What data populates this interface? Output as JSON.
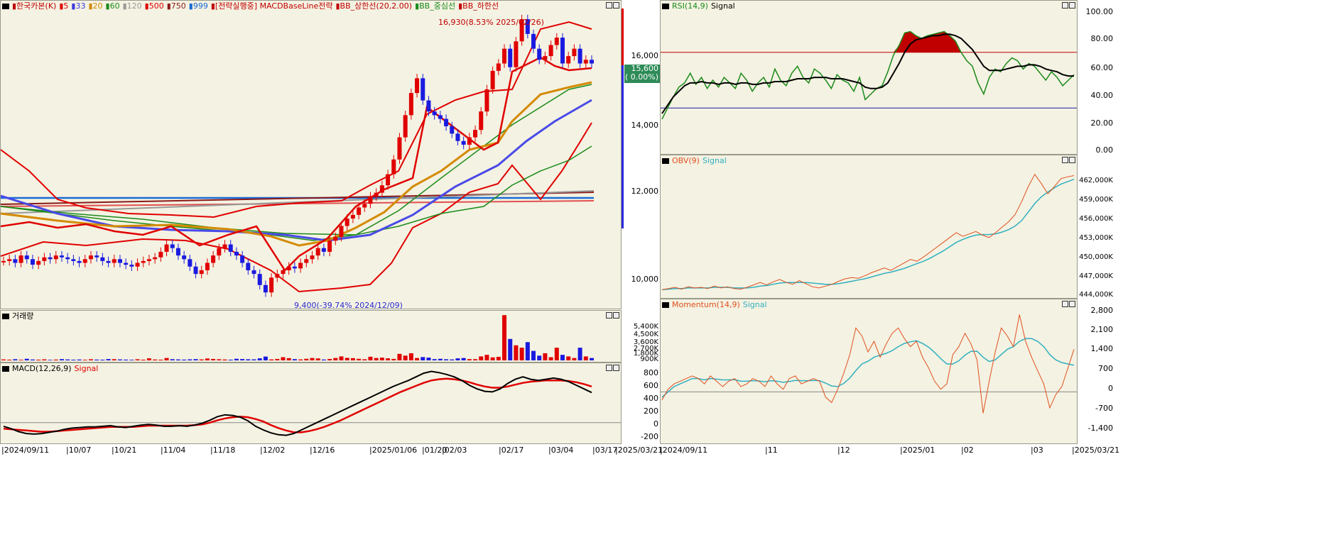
{
  "main": {
    "legend": [
      {
        "text": "한국카본(K)",
        "color": "#c00000"
      },
      {
        "text": "5",
        "color": "#e00000"
      },
      {
        "text": "33",
        "color": "#3a3ae0"
      },
      {
        "text": "20",
        "color": "#d48a00"
      },
      {
        "text": "60",
        "color": "#1a8a1a"
      },
      {
        "text": "120",
        "color": "#999999"
      },
      {
        "text": "500",
        "color": "#e00000"
      },
      {
        "text": "750",
        "color": "#8b1a1a"
      },
      {
        "text": "999",
        "color": "#1a6ad4"
      },
      {
        "text": "[전략실행중] MACDBaseLine전략",
        "color": "#c00000"
      },
      {
        "text": "BB_상한선(20,2.00)",
        "color": "#c00000"
      },
      {
        "text": "BB_중심선",
        "color": "#1a8a1a"
      },
      {
        "text": "BB_하한선",
        "color": "#c00000"
      }
    ],
    "y_ticks": [
      "16,000",
      "14,000",
      "12,000",
      "10,000"
    ],
    "price_tag": "15,600",
    "price_change": "( 0.00%)",
    "high_note": "16,930(8.53% 2025/02/26)",
    "low_note": "9,400(-39.74% 2024/12/09)"
  },
  "volume": {
    "title": "거래량",
    "y_ticks": [
      "5,400K",
      "4,500K",
      "3,600K",
      "2,700K",
      "1,800K",
      "900K",
      "0K"
    ]
  },
  "macd": {
    "title": "MACD(12,26,9)",
    "signal": "Signal",
    "y_ticks": [
      "800",
      "600",
      "400",
      "200",
      "0",
      "-200"
    ]
  },
  "x_ticks": [
    "2024/09/11",
    "10/07",
    "10/21",
    "11/04",
    "11/18",
    "12/02",
    "12/16",
    "2025/01/06",
    "01/20",
    "02/03",
    "02/17",
    "03/04",
    "03/17",
    "2025/03/21"
  ],
  "rsi": {
    "title": "RSI(14,9)",
    "signal": "Signal",
    "y_ticks": [
      "100.00",
      "80.00",
      "60.00",
      "40.00",
      "20.00",
      "0.00"
    ]
  },
  "obv": {
    "title": "OBV(9)",
    "signal": "Signal",
    "y_ticks": [
      "462,000K",
      "459,000K",
      "456,000K",
      "453,000K",
      "450,000K",
      "447,000K",
      "444,000K"
    ]
  },
  "momentum": {
    "title": "Momentum(14,9)",
    "signal": "Signal",
    "y_ticks": [
      "2,800",
      "2,100",
      "1,400",
      "700",
      "0",
      "-700",
      "-1,400"
    ]
  },
  "right_x_ticks": [
    "2024/09/11",
    "11",
    "12",
    "2025/01",
    "02",
    "03",
    "2025/03/21"
  ],
  "chart_data": [
    {
      "type": "candlestick",
      "title": "한국카본(K)",
      "x_range": [
        "2024/09/11",
        "2025/03/21"
      ],
      "ylim": [
        9000,
        17300
      ],
      "candles_close": [
        10250,
        10300,
        10200,
        10400,
        10300,
        10150,
        10250,
        10350,
        10300,
        10400,
        10350,
        10300,
        10250,
        10200,
        10300,
        10400,
        10350,
        10250,
        10200,
        10300,
        10200,
        10150,
        10100,
        10200,
        10250,
        10300,
        10350,
        10500,
        10700,
        10600,
        10400,
        10300,
        10100,
        9900,
        10000,
        10200,
        10400,
        10600,
        10700,
        10500,
        10400,
        10200,
        10000,
        9900,
        9600,
        9400,
        9800,
        9900,
        10000,
        10100,
        10050,
        10200,
        10300,
        10400,
        10600,
        10500,
        10800,
        10900,
        11200,
        11400,
        11500,
        11700,
        11800,
        12000,
        12100,
        12300,
        12600,
        13000,
        13600,
        14200,
        14800,
        15200,
        14600,
        14300,
        14200,
        14100,
        13900,
        13700,
        13500,
        13400,
        13600,
        13800,
        14300,
        14900,
        15400,
        15600,
        16000,
        15500,
        16200,
        16800,
        16400,
        16000,
        15700,
        15800,
        16100,
        16300,
        15600,
        15800,
        16000,
        15600,
        15700,
        15600
      ],
      "annotations": [
        "16,930(8.53% 2025/02/26)",
        "9,400(-39.74% 2024/12/09)"
      ],
      "last": "15,600"
    },
    {
      "type": "bar",
      "title": "거래량",
      "ylim": [
        0,
        5900
      ],
      "values": [
        120,
        90,
        150,
        80,
        200,
        110,
        90,
        130,
        70,
        100,
        160,
        120,
        90,
        110,
        80,
        140,
        100,
        90,
        170,
        150,
        120,
        100,
        80,
        140,
        90,
        260,
        110,
        90,
        300,
        150,
        120,
        100,
        130,
        160,
        120,
        240,
        180,
        140,
        110,
        90,
        200,
        170,
        140,
        130,
        260,
        480,
        120,
        180,
        400,
        280,
        160,
        120,
        200,
        300,
        250,
        110,
        180,
        300,
        500,
        320,
        280,
        200,
        140,
        460,
        300,
        350,
        260,
        190,
        820,
        600,
        900,
        300,
        420,
        350,
        160,
        200,
        140,
        120,
        260,
        300,
        160,
        150,
        500,
        700,
        380,
        450,
        5700,
        2700,
        1900,
        1600,
        2300,
        1200,
        600,
        900,
        400,
        1600,
        700,
        500,
        300,
        1600,
        500,
        300
      ]
    },
    {
      "type": "line",
      "title": "MACD(12,26,9)",
      "ylim": [
        -320,
        950
      ],
      "series": [
        {
          "name": "MACD",
          "values": [
            -60,
            -100,
            -150,
            -180,
            -190,
            -180,
            -160,
            -140,
            -110,
            -90,
            -80,
            -70,
            -70,
            -60,
            -50,
            -70,
            -80,
            -60,
            -40,
            -30,
            -40,
            -60,
            -60,
            -50,
            -60,
            -40,
            -10,
            40,
            100,
            130,
            120,
            90,
            30,
            -60,
            -120,
            -170,
            -200,
            -210,
            -180,
            -120,
            -60,
            0,
            60,
            120,
            180,
            240,
            300,
            360,
            420,
            480,
            540,
            600,
            650,
            700,
            760,
            820,
            850,
            830,
            800,
            760,
            700,
            620,
            560,
            520,
            510,
            560,
            650,
            720,
            760,
            720,
            700,
            720,
            740,
            720,
            680,
            620,
            560,
            500
          ]
        },
        {
          "name": "Signal",
          "values": [
            -100,
            -110,
            -120,
            -130,
            -140,
            -150,
            -150,
            -140,
            -130,
            -120,
            -110,
            -100,
            -90,
            -80,
            -70,
            -70,
            -70,
            -70,
            -60,
            -50,
            -50,
            -50,
            -50,
            -50,
            -50,
            -40,
            -30,
            0,
            40,
            70,
            90,
            100,
            90,
            60,
            20,
            -40,
            -90,
            -130,
            -160,
            -160,
            -140,
            -110,
            -70,
            -20,
            30,
            90,
            150,
            210,
            270,
            330,
            390,
            450,
            510,
            560,
            610,
            660,
            700,
            720,
            730,
            720,
            700,
            670,
            630,
            600,
            580,
            580,
            600,
            630,
            660,
            680,
            690,
            700,
            700,
            700,
            690,
            670,
            640,
            600
          ]
        }
      ]
    },
    {
      "type": "line",
      "title": "RSI(14,9)",
      "ylim": [
        0,
        100
      ],
      "series": [
        {
          "name": "RSI",
          "values": [
            22,
            30,
            38,
            45,
            48,
            55,
            47,
            52,
            44,
            50,
            45,
            52,
            48,
            44,
            55,
            50,
            42,
            48,
            52,
            45,
            58,
            50,
            46,
            55,
            60,
            52,
            48,
            58,
            55,
            50,
            44,
            54,
            50,
            48,
            42,
            52,
            36,
            40,
            44,
            46,
            56,
            68,
            75,
            84,
            85,
            82,
            80,
            82,
            83,
            84,
            85,
            82,
            78,
            70,
            64,
            60,
            48,
            40,
            52,
            58,
            56,
            62,
            66,
            64,
            58,
            62,
            60,
            55,
            50,
            56,
            52,
            46,
            50,
            54
          ]
        },
        {
          "name": "Signal",
          "values": [
            26,
            32,
            38,
            42,
            46,
            48,
            48,
            49,
            48,
            48,
            47,
            48,
            48,
            47,
            48,
            48,
            47,
            47,
            48,
            48,
            49,
            49,
            49,
            50,
            51,
            51,
            51,
            52,
            52,
            52,
            51,
            51,
            51,
            50,
            49,
            48,
            45,
            44,
            44,
            45,
            48,
            55,
            62,
            70,
            76,
            79,
            80,
            81,
            82,
            82,
            83,
            83,
            82,
            80,
            76,
            72,
            66,
            60,
            57,
            57,
            57,
            58,
            59,
            60,
            60,
            61,
            61,
            60,
            58,
            57,
            56,
            54,
            53,
            53
          ]
        }
      ]
    },
    {
      "type": "line",
      "title": "OBV(9)",
      "ylim": [
        443000,
        464500
      ],
      "series": [
        {
          "name": "OBV",
          "values": [
            444000,
            444200,
            444400,
            444100,
            444500,
            444300,
            444400,
            444200,
            444600,
            444300,
            444500,
            444200,
            444100,
            444400,
            444800,
            445200,
            444800,
            445300,
            445700,
            445200,
            444900,
            445500,
            445000,
            444500,
            444300,
            444600,
            444900,
            445400,
            445800,
            446000,
            445900,
            446300,
            446800,
            447200,
            447600,
            447200,
            447800,
            448400,
            449000,
            448700,
            449400,
            450200,
            451000,
            451800,
            452600,
            453400,
            452800,
            453200,
            453600,
            453000,
            452600,
            453400,
            454300,
            455200,
            456400,
            458500,
            461000,
            463000,
            461500,
            459800,
            461000,
            462300,
            462600,
            462800
          ]
        },
        {
          "name": "Signal",
          "values": [
            444000,
            444100,
            444200,
            444200,
            444300,
            444300,
            444300,
            444300,
            444400,
            444400,
            444400,
            444300,
            444300,
            444300,
            444400,
            444600,
            444700,
            444900,
            445100,
            445200,
            445200,
            445200,
            445200,
            445100,
            445000,
            444900,
            444900,
            445000,
            445200,
            445400,
            445600,
            445800,
            446100,
            446400,
            446700,
            446900,
            447200,
            447500,
            447900,
            448300,
            448700,
            449200,
            449800,
            450400,
            451100,
            451800,
            452300,
            452700,
            453000,
            453100,
            453100,
            453200,
            453500,
            453900,
            454500,
            455400,
            456800,
            458200,
            459300,
            460100,
            460800,
            461400,
            461800,
            462200
          ]
        }
      ]
    },
    {
      "type": "line",
      "title": "Momentum(14,9)",
      "ylim": [
        -1800,
        3100
      ],
      "series": [
        {
          "name": "Momentum",
          "values": [
            -300,
            100,
            300,
            400,
            500,
            600,
            500,
            300,
            600,
            400,
            200,
            400,
            500,
            200,
            300,
            500,
            400,
            200,
            600,
            300,
            100,
            500,
            600,
            300,
            400,
            500,
            400,
            -200,
            -400,
            100,
            700,
            1400,
            2400,
            2100,
            1500,
            1900,
            1300,
            1800,
            2200,
            2400,
            2000,
            1700,
            1900,
            1300,
            900,
            400,
            100,
            300,
            1400,
            1700,
            2200,
            1800,
            1200,
            -800,
            400,
            1500,
            2400,
            2100,
            1700,
            2900,
            1900,
            1300,
            800,
            300,
            -600,
            -100,
            200,
            900,
            1600
          ]
        },
        {
          "name": "Signal",
          "values": [
            -200,
            0,
            200,
            300,
            400,
            500,
            500,
            450,
            500,
            480,
            450,
            450,
            460,
            400,
            400,
            420,
            410,
            380,
            420,
            400,
            360,
            390,
            430,
            420,
            420,
            430,
            420,
            330,
            220,
            200,
            320,
            520,
            800,
            1050,
            1150,
            1300,
            1380,
            1450,
            1550,
            1700,
            1820,
            1880,
            1920,
            1820,
            1680,
            1480,
            1250,
            1050,
            1050,
            1170,
            1380,
            1520,
            1530,
            1300,
            1140,
            1200,
            1400,
            1600,
            1700,
            1900,
            2000,
            2000,
            1900,
            1700,
            1400,
            1200,
            1100,
            1050,
            1000
          ]
        }
      ]
    }
  ]
}
